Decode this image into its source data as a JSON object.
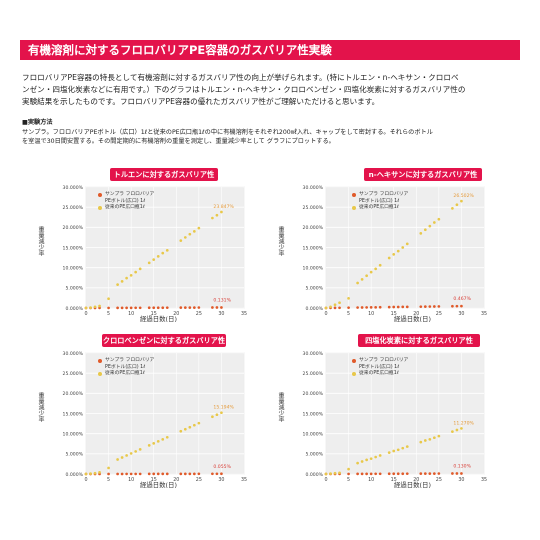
{
  "header": {
    "title": "有機溶剤に対するフロロバリアPE容器のガスバリア性実験"
  },
  "intro": {
    "lines": [
      "フロロバリアPE容器の特長として有機溶剤に対するガスバリア性の向上が挙げられます。(特にトルエン・n-ヘキサン・クロロベ",
      "ンゼン・四塩化炭素などに有用です。）下のグラフはトルエン・n-ヘキサン・クロロベンゼン・四塩化炭素に対するガスバリア性の",
      "実験結果を示したものです。フロロバリアPE容器の優れたガスバリア性がご理解いただけると思います。"
    ]
  },
  "method": {
    "heading": "■実験方法",
    "lines": [
      "サンプラ。フロロバリアPEボトル（広口）1ℓと従来のPE広口瓶1ℓの中に有機溶剤をそれぞれ200㎖入れ、キャップをして密封する。それらのボトル",
      "を室温で30日間安置する。その間定期的に有機溶剤の重量を測定し、重量減少率として グラフにプロットする。"
    ]
  },
  "colors": {
    "accent": "#e3134b",
    "series_barrier": "#e05a2a",
    "series_conventional": "#e8c84a",
    "plot_bg": "#eeeeee"
  },
  "chart_data": [
    {
      "type": "scatter",
      "title": "トルエンに対するガスバリア性",
      "xlabel": "経過日数(日)",
      "ylabel": "重量減少率",
      "xlim": [
        0,
        35
      ],
      "ylim": [
        0,
        30
      ],
      "xticks": [
        "0",
        "5",
        "10",
        "15",
        "20",
        "25",
        "30",
        "35"
      ],
      "yticks": [
        "0.000%",
        "5.000%",
        "10.000%",
        "15.000%",
        "20.000%",
        "25.000%",
        "30.000%"
      ],
      "grid": true,
      "legend_position": "top-left",
      "series": [
        {
          "name": "サンプラ フロロバリア PEボトル(広口) 1ℓ",
          "end_label": "0.131%",
          "x": [
            0,
            1,
            2,
            3,
            5,
            7,
            8,
            9,
            10,
            11,
            12,
            14,
            15,
            16,
            17,
            18,
            21,
            22,
            23,
            24,
            25,
            28,
            29,
            30
          ],
          "y": [
            0,
            0.01,
            0.01,
            0.02,
            0.02,
            0.03,
            0.03,
            0.04,
            0.04,
            0.05,
            0.05,
            0.06,
            0.06,
            0.07,
            0.07,
            0.08,
            0.09,
            0.09,
            0.1,
            0.1,
            0.11,
            0.12,
            0.12,
            0.13
          ]
        },
        {
          "name": "従来のPE広口瓶1ℓ",
          "end_label": "23.847%",
          "x": [
            0,
            1,
            2,
            3,
            5,
            7,
            8,
            9,
            10,
            11,
            12,
            14,
            15,
            16,
            17,
            18,
            21,
            22,
            23,
            24,
            25,
            28,
            29,
            30
          ],
          "y": [
            0,
            0.1,
            0.3,
            0.5,
            2.3,
            5.8,
            6.6,
            7.4,
            8.1,
            8.9,
            9.7,
            11.2,
            12,
            12.8,
            13.6,
            14.3,
            16.7,
            17.5,
            18.3,
            19,
            19.8,
            22.3,
            23,
            23.8
          ]
        }
      ]
    },
    {
      "type": "scatter",
      "title": "n-ヘキサンに対するガスバリア性",
      "xlabel": "経過日数(日)",
      "ylabel": "重量減少率",
      "xlim": [
        0,
        35
      ],
      "ylim": [
        0,
        30
      ],
      "xticks": [
        "0",
        "5",
        "10",
        "15",
        "20",
        "25",
        "30",
        "35"
      ],
      "yticks": [
        "0.000%",
        "5.000%",
        "10.000%",
        "15.000%",
        "20.000%",
        "25.000%",
        "30.000%"
      ],
      "grid": true,
      "legend_position": "top-left",
      "series": [
        {
          "name": "サンプラ フロロバリア PEボトル(広口) 1ℓ",
          "end_label": "0.467%",
          "x": [
            0,
            1,
            2,
            3,
            5,
            7,
            8,
            9,
            10,
            11,
            12,
            14,
            15,
            16,
            17,
            18,
            21,
            22,
            23,
            24,
            25,
            28,
            29,
            30
          ],
          "y": [
            0,
            0.02,
            0.04,
            0.05,
            0.08,
            0.11,
            0.13,
            0.14,
            0.16,
            0.17,
            0.19,
            0.22,
            0.24,
            0.25,
            0.27,
            0.28,
            0.33,
            0.34,
            0.36,
            0.38,
            0.39,
            0.44,
            0.45,
            0.47
          ]
        },
        {
          "name": "従来のPE広口瓶1ℓ",
          "end_label": "26.502%",
          "x": [
            0,
            1,
            2,
            3,
            5,
            7,
            8,
            9,
            10,
            11,
            12,
            14,
            15,
            16,
            17,
            18,
            21,
            22,
            23,
            24,
            25,
            28,
            29,
            30
          ],
          "y": [
            0,
            0.3,
            0.8,
            1.3,
            2.4,
            6.2,
            7.1,
            8,
            8.9,
            9.7,
            10.6,
            12.4,
            13.3,
            14.1,
            15,
            15.9,
            18.5,
            19.4,
            20.3,
            21.2,
            22,
            24.7,
            25.6,
            26.5
          ]
        }
      ]
    },
    {
      "type": "scatter",
      "title": "クロロベンゼンに対するガスバリア性",
      "xlabel": "経過日数(日)",
      "ylabel": "重量減少率",
      "xlim": [
        0,
        35
      ],
      "ylim": [
        0,
        30
      ],
      "xticks": [
        "0",
        "5",
        "10",
        "15",
        "20",
        "25",
        "30",
        "35"
      ],
      "yticks": [
        "0.000%",
        "5.000%",
        "10.000%",
        "15.000%",
        "20.000%",
        "25.000%",
        "30.000%"
      ],
      "grid": true,
      "legend_position": "top-left",
      "series": [
        {
          "name": "サンプラ フロロバリア PEボトル(広口) 1ℓ",
          "end_label": "0.055%",
          "x": [
            0,
            1,
            2,
            3,
            5,
            7,
            8,
            9,
            10,
            11,
            12,
            14,
            15,
            16,
            17,
            18,
            21,
            22,
            23,
            24,
            25,
            28,
            29,
            30
          ],
          "y": [
            0,
            0,
            0,
            0.01,
            0.01,
            0.01,
            0.01,
            0.02,
            0.02,
            0.02,
            0.02,
            0.03,
            0.03,
            0.03,
            0.03,
            0.03,
            0.04,
            0.04,
            0.04,
            0.04,
            0.05,
            0.05,
            0.05,
            0.06
          ]
        },
        {
          "name": "従来のPE広口瓶1ℓ",
          "end_label": "15.194%",
          "x": [
            0,
            1,
            2,
            3,
            5,
            7,
            8,
            9,
            10,
            11,
            12,
            14,
            15,
            16,
            17,
            18,
            21,
            22,
            23,
            24,
            25,
            28,
            29,
            30
          ],
          "y": [
            0,
            0.1,
            0.2,
            0.4,
            1.5,
            3.6,
            4.1,
            4.6,
            5.1,
            5.6,
            6.1,
            7.1,
            7.6,
            8.1,
            8.6,
            9.1,
            10.6,
            11.1,
            11.6,
            12.1,
            12.6,
            14.2,
            14.7,
            15.2
          ]
        }
      ]
    },
    {
      "type": "scatter",
      "title": "四塩化炭素に対するガスバリア性",
      "xlabel": "経過日数(日)",
      "ylabel": "重量減少率",
      "xlim": [
        0,
        35
      ],
      "ylim": [
        0,
        30
      ],
      "xticks": [
        "0",
        "5",
        "10",
        "15",
        "20",
        "25",
        "30",
        "35"
      ],
      "yticks": [
        "0.000%",
        "5.000%",
        "10.000%",
        "15.000%",
        "20.000%",
        "25.000%",
        "30.000%"
      ],
      "grid": true,
      "legend_position": "top-left",
      "series": [
        {
          "name": "サンプラ フロロバリア PEボトル(広口) 1ℓ",
          "end_label": "0.130%",
          "x": [
            0,
            1,
            2,
            3,
            5,
            7,
            8,
            9,
            10,
            11,
            12,
            14,
            15,
            16,
            17,
            18,
            21,
            22,
            23,
            24,
            25,
            28,
            29,
            30
          ],
          "y": [
            0,
            0.01,
            0.01,
            0.02,
            0.02,
            0.03,
            0.03,
            0.04,
            0.04,
            0.05,
            0.05,
            0.06,
            0.06,
            0.07,
            0.07,
            0.08,
            0.09,
            0.09,
            0.1,
            0.1,
            0.11,
            0.12,
            0.12,
            0.13
          ]
        },
        {
          "name": "従来のPE広口瓶1ℓ",
          "end_label": "11.270%",
          "x": [
            0,
            1,
            2,
            3,
            5,
            7,
            8,
            9,
            10,
            11,
            12,
            14,
            15,
            16,
            17,
            18,
            21,
            22,
            23,
            24,
            25,
            28,
            29,
            30
          ],
          "y": [
            0,
            0.1,
            0.2,
            0.3,
            1.2,
            2.7,
            3.1,
            3.5,
            3.8,
            4.2,
            4.6,
            5.3,
            5.7,
            6,
            6.4,
            6.8,
            7.9,
            8.3,
            8.6,
            9,
            9.4,
            10.5,
            10.9,
            11.3
          ]
        }
      ]
    }
  ]
}
